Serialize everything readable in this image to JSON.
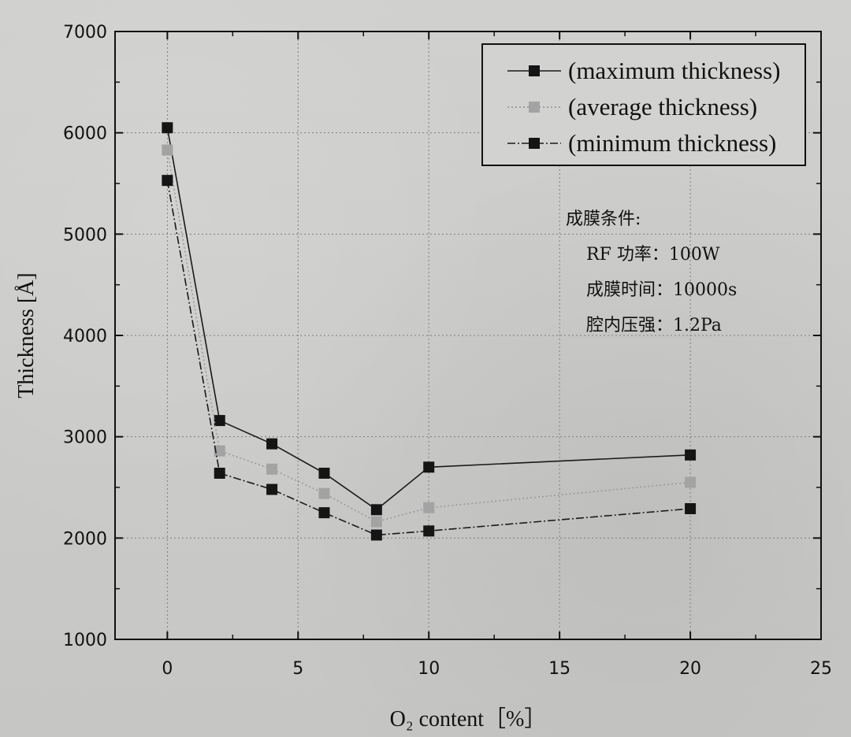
{
  "chart_data": {
    "type": "line",
    "title": "",
    "xlabel": "O₂ content［%］",
    "ylabel": "Thickness [Å]",
    "xlim": [
      -2,
      25
    ],
    "ylim": [
      1000,
      7000
    ],
    "x_ticks": [
      "0",
      "5",
      "10",
      "15",
      "20",
      "25"
    ],
    "y_ticks": [
      "1000",
      "2000",
      "3000",
      "4000",
      "5000",
      "6000",
      "7000"
    ],
    "grid": "dotted",
    "legend_position": "top-right",
    "x": [
      0,
      2,
      4,
      6,
      8,
      10,
      20
    ],
    "series": [
      {
        "name": "(maximum thickness)",
        "values": [
          6050,
          3160,
          2930,
          2640,
          2280,
          2700,
          2820
        ],
        "color": "#1a1a1a",
        "line_style": "solid"
      },
      {
        "name": "(average thickness)",
        "values": [
          5830,
          2860,
          2680,
          2440,
          2160,
          2300,
          2550
        ],
        "color": "#9a9a9a",
        "line_style": "dotted"
      },
      {
        "name": "(minimum thickness)",
        "values": [
          5530,
          2640,
          2480,
          2250,
          2030,
          2070,
          2290
        ],
        "color": "#1a1a1a",
        "line_style": "dashdot"
      }
    ],
    "annotation": {
      "heading": "成膜条件:",
      "lines": [
        "RF 功率：100W",
        "成膜时间：10000s",
        "腔内压强：1.2Pa"
      ]
    }
  }
}
